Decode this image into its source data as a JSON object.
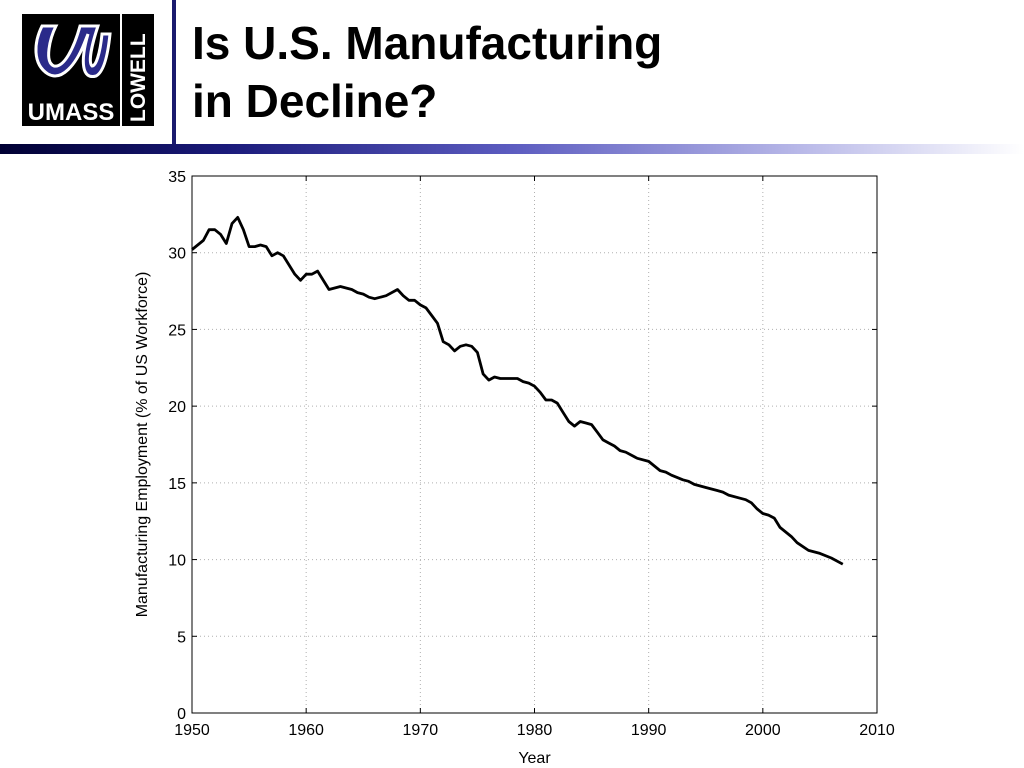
{
  "header": {
    "title_line1": "Is U.S. Manufacturing",
    "title_line2": "in Decline?",
    "logo_wordmark": "UMASS",
    "logo_side_text": "LOWELL",
    "brand_color": "#1a1a6e"
  },
  "chart_data": {
    "type": "line",
    "xlabel": "Year",
    "ylabel": "Manufacturing Employment (% of US Workforce)",
    "xlim": [
      1950,
      2010
    ],
    "ylim": [
      0,
      35
    ],
    "xticks": [
      1950,
      1960,
      1970,
      1980,
      1990,
      2000,
      2010
    ],
    "yticks": [
      0,
      5,
      10,
      15,
      20,
      25,
      30,
      35
    ],
    "grid": true,
    "series": [
      {
        "color": "#000000",
        "x": [
          1950,
          1951,
          1951.5,
          1952,
          1952.5,
          1953,
          1953.5,
          1954,
          1954.5,
          1955,
          1955.5,
          1956,
          1956.5,
          1957,
          1957.5,
          1958,
          1959,
          1959.5,
          1960,
          1960.5,
          1961,
          1962,
          1963,
          1963.5,
          1964,
          1964.5,
          1965,
          1965.5,
          1966,
          1966.5,
          1967,
          1968,
          1968.5,
          1969,
          1969.5,
          1970,
          1970.5,
          1971,
          1971.5,
          1972,
          1972.5,
          1973,
          1973.5,
          1974,
          1974.5,
          1975,
          1975.5,
          1976,
          1976.5,
          1977,
          1977.5,
          1978,
          1978.5,
          1979,
          1979.5,
          1980,
          1980.5,
          1981,
          1981.5,
          1982,
          1982.5,
          1983,
          1983.5,
          1984,
          1984.5,
          1985,
          1985.5,
          1986,
          1986.5,
          1987,
          1987.5,
          1988,
          1989,
          1990,
          1990.5,
          1991,
          1991.5,
          1992,
          1993,
          1993.5,
          1994,
          1995,
          1996,
          1996.5,
          1997,
          1998,
          1998.5,
          1999,
          1999.5,
          2000,
          2000.5,
          2001,
          2001.5,
          2002,
          2002.5,
          2003,
          2004,
          2004.5,
          2005,
          2006,
          2007
        ],
        "y": [
          30.2,
          30.8,
          31.5,
          31.5,
          31.2,
          30.6,
          31.9,
          32.3,
          31.5,
          30.4,
          30.4,
          30.5,
          30.4,
          29.8,
          30.0,
          29.8,
          28.6,
          28.2,
          28.6,
          28.6,
          28.8,
          27.6,
          27.8,
          27.7,
          27.6,
          27.4,
          27.3,
          27.1,
          27.0,
          27.1,
          27.2,
          27.6,
          27.2,
          26.9,
          26.9,
          26.6,
          26.4,
          25.9,
          25.4,
          24.2,
          24.0,
          23.6,
          23.9,
          24.0,
          23.9,
          23.5,
          22.1,
          21.7,
          21.9,
          21.8,
          21.8,
          21.8,
          21.8,
          21.6,
          21.5,
          21.3,
          20.9,
          20.4,
          20.4,
          20.2,
          19.6,
          19.0,
          18.7,
          19.0,
          18.9,
          18.8,
          18.3,
          17.8,
          17.6,
          17.4,
          17.1,
          17.0,
          16.6,
          16.4,
          16.1,
          15.8,
          15.7,
          15.5,
          15.2,
          15.1,
          14.9,
          14.7,
          14.5,
          14.4,
          14.2,
          14.0,
          13.9,
          13.7,
          13.3,
          13.0,
          12.9,
          12.7,
          12.1,
          11.8,
          11.5,
          11.1,
          10.6,
          10.5,
          10.4,
          10.1,
          9.7
        ]
      }
    ]
  }
}
